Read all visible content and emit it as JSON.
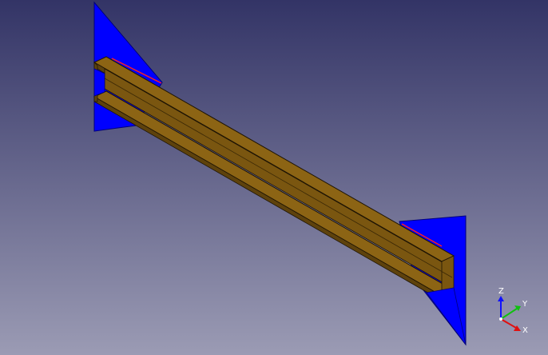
{
  "viewport": {
    "background_top": "#333466",
    "background_bottom": "#9b9bb4"
  },
  "colors": {
    "plate": "#0000ff",
    "plate_edge": "#00007a",
    "beam_top": "#8c6414",
    "beam_side": "#7a5610",
    "beam_dark": "#5e420c",
    "beam_edge": "#1e1404",
    "contact_line": "#ff2020",
    "axis_x": "#e01010",
    "axis_y": "#10c010",
    "axis_z": "#1010ff"
  },
  "axis_triad": {
    "x_label": "X",
    "y_label": "Y",
    "z_label": "Z"
  }
}
